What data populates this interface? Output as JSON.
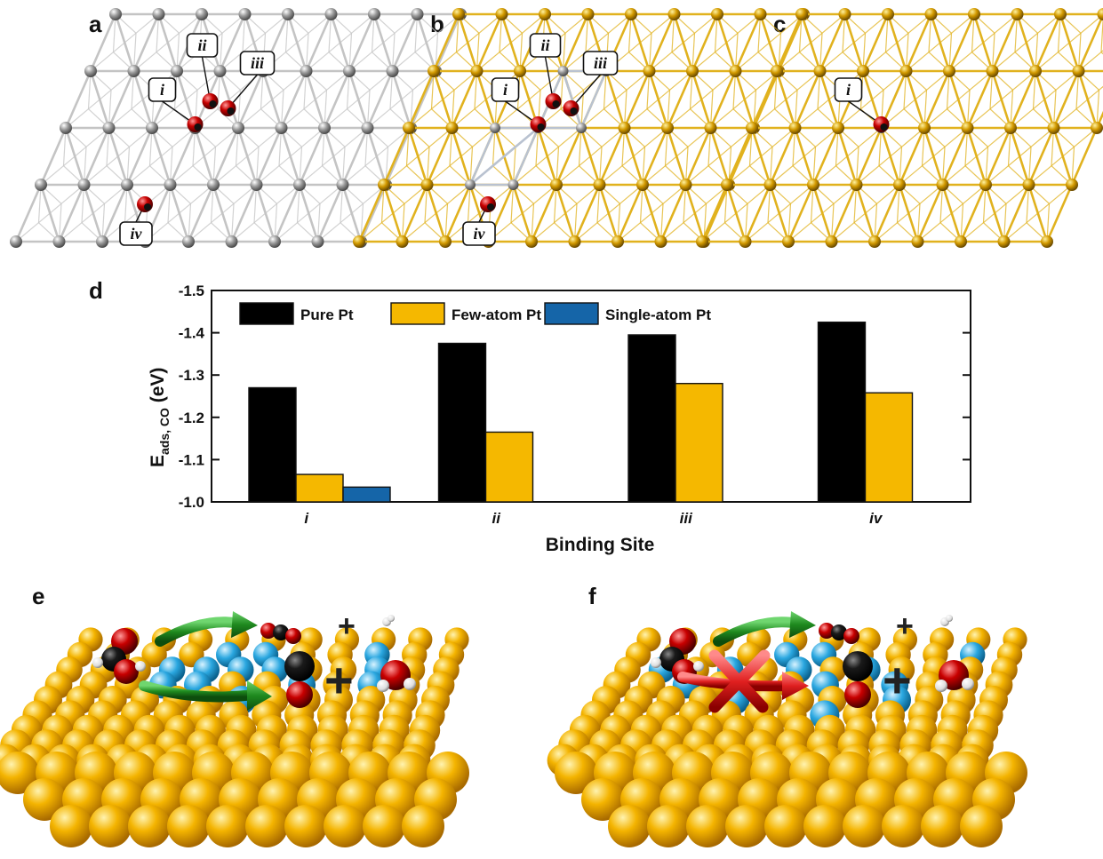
{
  "panels": {
    "a": "a",
    "b": "b",
    "c": "c",
    "d": "d",
    "e": "e",
    "f": "f"
  },
  "lattice_panels": [
    {
      "id": "a",
      "metal_color": "#c4c4c4",
      "pt_color": "#9a9a9a",
      "callouts": [
        "i",
        "ii",
        "iii",
        "iv"
      ]
    },
    {
      "id": "b",
      "metal_color": "#e1b21e",
      "pt_color": "#a8a8a8",
      "callouts": [
        "i",
        "ii",
        "iii",
        "iv"
      ]
    },
    {
      "id": "c",
      "metal_color": "#e1b21e",
      "pt_color": "#a8a8a8",
      "callouts": [
        "i"
      ]
    }
  ],
  "chart_data": {
    "type": "bar",
    "categories": [
      "i",
      "ii",
      "iii",
      "iv"
    ],
    "series": [
      {
        "name": "Pure Pt",
        "color": "#000000",
        "values": [
          -1.27,
          -1.375,
          -1.395,
          -1.425
        ]
      },
      {
        "name": "Few-atom Pt",
        "color": "#f5b800",
        "values": [
          -1.065,
          -1.165,
          -1.28,
          -1.258
        ]
      },
      {
        "name": "Single-atom Pt",
        "color": "#1565a8",
        "values": [
          -1.035,
          null,
          null,
          null
        ]
      }
    ],
    "xlabel": "Binding Site",
    "ylabel_main": "E",
    "ylabel_sub": "ads, CO",
    "ylabel_unit": "(eV)",
    "ylim": [
      -1.0,
      -1.5
    ],
    "yticks": [
      "-1.0",
      "-1.1",
      "-1.2",
      "-1.3",
      "-1.4",
      "-1.5"
    ],
    "ytick_values": [
      -1.0,
      -1.1,
      -1.2,
      -1.3,
      -1.4,
      -1.5
    ],
    "legend_placement": "top"
  },
  "scenes": {
    "e": {
      "plus_signs": [
        "+",
        "+"
      ]
    },
    "f": {
      "plus_signs": [
        "+",
        "+"
      ]
    }
  },
  "colors": {
    "gold": "#f2a900",
    "pt_blue": "#29a8e0",
    "oxygen": "#c00000",
    "carbon": "#111111",
    "hydrogen": "#f2f2f2",
    "arrow_green": "#1f8a1f",
    "arrow_red": "#e02020"
  }
}
